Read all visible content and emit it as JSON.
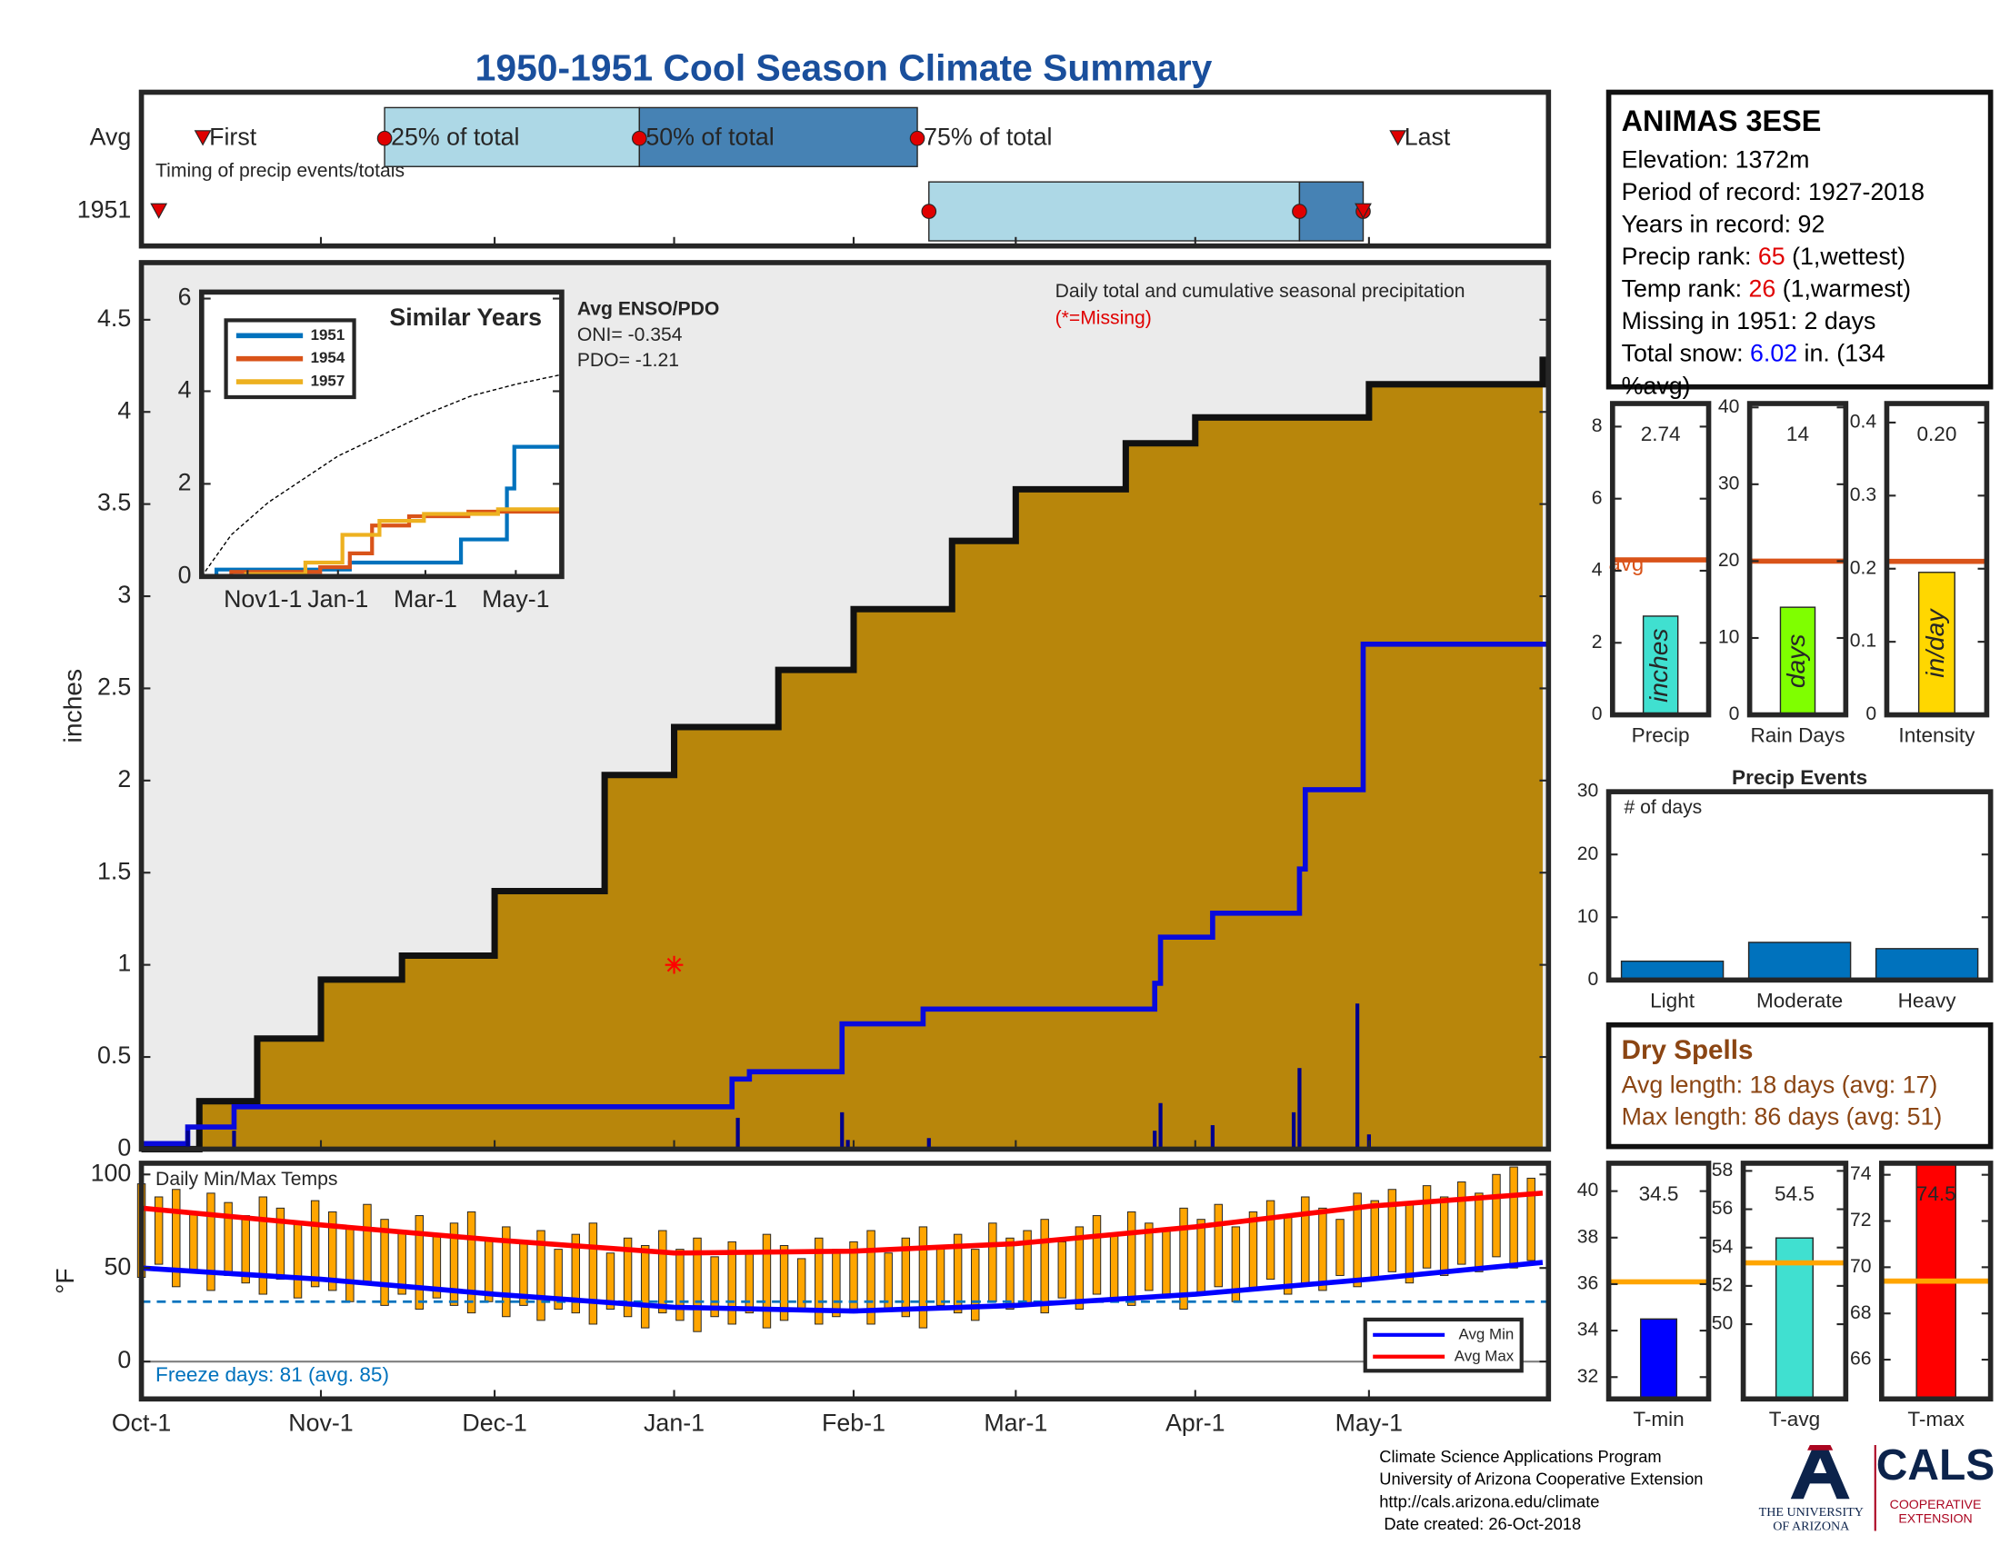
{
  "title": "1950-1951 Cool Season Climate Summary",
  "chart_data": [
    {
      "type": "timeline",
      "title": "Timing of precip events/totals",
      "xlim": [
        0,
        243
      ],
      "rows": [
        "Avg",
        "1951"
      ],
      "markers": [
        "First",
        "25% of total",
        "50% of total",
        "75% of total",
        "Last"
      ],
      "series": [
        {
          "values": [
            10.6,
            42,
            86,
            134,
            217
          ]
        },
        {
          "values": [
            3,
            136,
            200,
            211,
            211
          ]
        }
      ],
      "colors": [
        "#add8e6",
        "#4682b4"
      ],
      "marker_color": "#e00000"
    },
    {
      "type": "area",
      "title": "Daily total and cumulative seasonal precipitation",
      "subtitle": "(*=Missing)",
      "ylabel": "inches",
      "xlim": [
        0,
        243
      ],
      "ylim": [
        0,
        4.81
      ],
      "yticks": [
        0,
        0.5,
        1,
        1.5,
        2,
        2.5,
        3,
        3.5,
        4,
        4.5
      ],
      "background": "#ebebeb",
      "series": [
        {
          "style": "area",
          "color": "#b8860b",
          "x": [
            0,
            10,
            20,
            31,
            45,
            61,
            80,
            92,
            110,
            123,
            140,
            151,
            170,
            182,
            212,
            242
          ],
          "values": [
            0,
            0.26,
            0.6,
            0.92,
            1.05,
            1.4,
            2.03,
            2.29,
            2.6,
            2.93,
            3.3,
            3.58,
            3.83,
            3.97,
            4.15,
            4.3
          ]
        },
        {
          "style": "step",
          "color": "#0a0adc",
          "x": [
            0,
            8,
            16,
            102,
            105,
            121,
            135,
            175,
            176,
            185,
            200,
            201,
            211
          ],
          "values": [
            0.03,
            0.12,
            0.23,
            0.38,
            0.42,
            0.68,
            0.76,
            0.9,
            1.15,
            1.28,
            1.52,
            1.95,
            2.74
          ]
        },
        {
          "style": "bar",
          "color": "#00008b",
          "x": [
            8,
            16,
            103,
            106,
            121,
            122,
            136,
            175,
            176,
            185,
            199,
            200,
            210,
            212
          ],
          "values": [
            0.1,
            0.1,
            0.17,
            0.01,
            0.2,
            0.05,
            0.06,
            0.1,
            0.25,
            0.13,
            0.2,
            0.44,
            0.79,
            0.08
          ]
        },
        {
          "style": "marker",
          "color": "#ff0000",
          "x": [
            92
          ],
          "values": [
            1
          ]
        }
      ]
    },
    {
      "type": "line",
      "title": "Similar Years",
      "xlim": [
        0,
        243
      ],
      "ylim": [
        0,
        6.14
      ],
      "yticks": [
        0,
        2,
        4,
        6
      ],
      "xticks": [
        {
          "value": 31,
          "label": "Nov1-1"
        },
        {
          "value": 92,
          "label": "Jan-1"
        },
        {
          "value": 151,
          "label": "Mar-1"
        },
        {
          "value": 212,
          "label": "May-1"
        }
      ],
      "legend": "upper left",
      "series": [
        {
          "name": "1951",
          "style": "step",
          "color": "#0072bd",
          "x": [
            0,
            10,
            60,
            100,
            130,
            175,
            200,
            206,
            211,
            243
          ],
          "values": [
            0,
            0.15,
            0.15,
            0.3,
            0.3,
            0.8,
            0.8,
            1.9,
            2.8,
            2.8
          ]
        },
        {
          "name": "1954",
          "style": "step",
          "color": "#d95319",
          "x": [
            0,
            20,
            80,
            100,
            115,
            140,
            180,
            243
          ],
          "values": [
            0,
            0.1,
            0.2,
            0.5,
            1.1,
            1.3,
            1.4,
            1.4
          ]
        },
        {
          "name": "1957",
          "style": "step",
          "color": "#edb120",
          "x": [
            0,
            30,
            70,
            95,
            120,
            150,
            200,
            243
          ],
          "values": [
            0,
            0.05,
            0.3,
            0.9,
            1.2,
            1.35,
            1.45,
            1.5
          ]
        },
        {
          "style": "dashed",
          "color": "#000000",
          "x": [
            0,
            20,
            45,
            92,
            151,
            182,
            212,
            243
          ],
          "values": [
            0,
            0.9,
            1.6,
            2.6,
            3.5,
            3.9,
            4.15,
            4.36
          ]
        }
      ],
      "annotation": {
        "title": "Avg ENSO/PDO",
        "lines": [
          "ONI= -0.354",
          "PDO= -1.21"
        ]
      }
    },
    {
      "type": "range-bar",
      "title": "Daily Min/Max Temps",
      "ylabel": "°F",
      "xlim": [
        0,
        243
      ],
      "ylim": [
        -20,
        106
      ],
      "yticks": [
        0,
        50,
        100
      ],
      "xticks": [
        {
          "value": 0,
          "label": "Oct-1"
        },
        {
          "value": 31,
          "label": "Nov-1"
        },
        {
          "value": 61,
          "label": "Dec-1"
        },
        {
          "value": 92,
          "label": "Jan-1"
        },
        {
          "value": 123,
          "label": "Feb-1"
        },
        {
          "value": 151,
          "label": "Mar-1"
        },
        {
          "value": 182,
          "label": "Apr-1"
        },
        {
          "value": 212,
          "label": "May-1"
        }
      ],
      "bar_color": "#ffa500",
      "x": [
        0,
        3,
        6,
        9,
        12,
        15,
        18,
        21,
        24,
        27,
        30,
        33,
        36,
        39,
        42,
        45,
        48,
        51,
        54,
        57,
        60,
        63,
        66,
        69,
        72,
        75,
        78,
        81,
        84,
        87,
        90,
        93,
        96,
        99,
        102,
        105,
        108,
        111,
        114,
        117,
        120,
        123,
        126,
        129,
        132,
        135,
        138,
        141,
        144,
        147,
        150,
        153,
        156,
        159,
        162,
        165,
        168,
        171,
        174,
        177,
        180,
        183,
        186,
        189,
        192,
        195,
        198,
        201,
        204,
        207,
        210,
        213,
        216,
        219,
        222,
        225,
        228,
        231,
        234,
        237,
        240
      ],
      "high": [
        95,
        88,
        92,
        80,
        90,
        85,
        78,
        88,
        82,
        75,
        86,
        80,
        72,
        84,
        76,
        70,
        78,
        68,
        74,
        80,
        66,
        72,
        64,
        70,
        60,
        68,
        74,
        58,
        66,
        62,
        70,
        60,
        66,
        56,
        64,
        58,
        68,
        62,
        55,
        66,
        60,
        64,
        70,
        58,
        66,
        72,
        62,
        68,
        60,
        74,
        66,
        70,
        76,
        64,
        72,
        78,
        68,
        80,
        74,
        70,
        82,
        76,
        84,
        72,
        80,
        86,
        78,
        88,
        82,
        76,
        90,
        86,
        92,
        84,
        94,
        88,
        96,
        90,
        100,
        104,
        98
      ],
      "low": [
        45,
        52,
        40,
        48,
        38,
        46,
        42,
        36,
        44,
        34,
        40,
        38,
        32,
        42,
        30,
        36,
        28,
        34,
        30,
        26,
        32,
        24,
        30,
        22,
        28,
        26,
        20,
        28,
        24,
        18,
        26,
        22,
        16,
        24,
        20,
        26,
        18,
        22,
        28,
        20,
        24,
        26,
        20,
        28,
        24,
        18,
        30,
        26,
        22,
        32,
        28,
        30,
        26,
        34,
        28,
        36,
        32,
        30,
        38,
        34,
        28,
        36,
        40,
        32,
        38,
        44,
        36,
        42,
        38,
        46,
        40,
        44,
        48,
        42,
        50,
        46,
        52,
        48,
        56,
        50,
        54
      ],
      "series": [
        {
          "name": "Avg Min",
          "color": "#0000ff",
          "x": [
            0,
            31,
            61,
            92,
            123,
            151,
            182,
            212,
            242
          ],
          "values": [
            50,
            44,
            36,
            29,
            27,
            30,
            36,
            44,
            53
          ]
        },
        {
          "name": "Avg Max",
          "color": "#ff0000",
          "x": [
            0,
            31,
            61,
            92,
            123,
            151,
            182,
            212,
            242
          ],
          "values": [
            82,
            73,
            65,
            58,
            59,
            63,
            72,
            83,
            90
          ]
        }
      ],
      "freeze_line": 32,
      "freeze_color": "#0072bd",
      "annotation": "Freeze days: 81 (avg. 85)",
      "legend": "lower right"
    },
    {
      "type": "bar",
      "categories": [
        "Precip"
      ],
      "values": [
        2.74
      ],
      "color": "#40e0d0",
      "avg": 4.3,
      "avg_label": "avg",
      "avg_color": "#d95319",
      "unit_label": "inches",
      "ylim": [
        0,
        8.64
      ],
      "yticks": [
        0,
        2,
        4,
        6,
        8
      ]
    },
    {
      "type": "bar",
      "categories": [
        "Rain Days"
      ],
      "values": [
        14
      ],
      "color": "#7fff00",
      "avg": 20,
      "avg_color": "#d95319",
      "unit_label": "days",
      "ylim": [
        0,
        40.5
      ],
      "yticks": [
        0,
        10,
        20,
        30,
        40
      ]
    },
    {
      "type": "bar",
      "categories": [
        "Intensity"
      ],
      "values": [
        0.195
      ],
      "value_labels": [
        "0.20"
      ],
      "color": "#ffd700",
      "avg": 0.21,
      "avg_color": "#d95319",
      "unit_label": "in/day",
      "ylim": [
        0,
        0.426
      ],
      "yticks": [
        0,
        0.1,
        0.2,
        0.3,
        0.4
      ]
    },
    {
      "type": "bar",
      "title": "Precip Events",
      "ylabel": "# of days",
      "categories": [
        "Light",
        "Moderate",
        "Heavy"
      ],
      "values": [
        3,
        6,
        5
      ],
      "color": "#0072bd",
      "ylim": [
        0,
        30
      ],
      "yticks": [
        0,
        10,
        20,
        30
      ],
      "hide_value_labels": true
    },
    {
      "type": "bar",
      "categories": [
        "T-min"
      ],
      "values": [
        34.5
      ],
      "color": "#0000ff",
      "avg": 36.1,
      "avg_color": "#ffa500",
      "ylim": [
        31.06,
        41.2
      ],
      "yticks": [
        32,
        34,
        36,
        38,
        40
      ]
    },
    {
      "type": "bar",
      "categories": [
        "T-avg"
      ],
      "values": [
        54.5
      ],
      "color": "#40e0d0",
      "avg": 53.2,
      "avg_color": "#ffa500",
      "ylim": [
        46.1,
        58.4
      ],
      "yticks": [
        50,
        52,
        54,
        56,
        58
      ]
    },
    {
      "type": "bar",
      "categories": [
        "T-max"
      ],
      "values": [
        74.5
      ],
      "color": "#ff0000",
      "avg": 69.4,
      "avg_color": "#ffa500",
      "ylim": [
        64.3,
        74.5
      ],
      "yticks": [
        66,
        68,
        70,
        72,
        74
      ]
    }
  ],
  "station": {
    "name": "ANIMAS 3ESE",
    "lines": [
      [
        {
          "text": "Elevation: 1372m"
        }
      ],
      [
        {
          "text": "Period of record: 1927-2018"
        }
      ],
      [
        {
          "text": "Years in record: 92"
        }
      ],
      [
        {
          "text": "Precip rank: "
        },
        {
          "text": "65",
          "color": "#e00000"
        },
        {
          "text": " (1,wettest)"
        }
      ],
      [
        {
          "text": "Temp rank: "
        },
        {
          "text": "26",
          "color": "#e00000"
        },
        {
          "text": " (1,warmest)"
        }
      ],
      [
        {
          "text": "Missing in 1951: 2 days"
        }
      ],
      [
        {
          "text": "Total snow: "
        },
        {
          "text": "6.02",
          "color": "#0000ff"
        },
        {
          "text": " in. (134"
        }
      ],
      [
        {
          "text": "%avg)"
        }
      ]
    ]
  },
  "dry_spells": {
    "title": "Dry Spells",
    "lines": [
      "Avg length: 18 days (avg: 17)",
      "Max length: 86 days (avg: 51)"
    ],
    "color": "#8b4513"
  },
  "footer": {
    "lines": [
      "Climate Science Applications Program",
      "University of Arizona Cooperative Extension",
      "http://cals.arizona.edu/climate",
      " Date created: 26-Oct-2018"
    ],
    "ua": [
      "THE UNIVERSITY",
      "OF ARIZONA"
    ],
    "cals": "CALS",
    "extension": [
      "COOPERATIVE",
      "EXTENSION"
    ]
  }
}
